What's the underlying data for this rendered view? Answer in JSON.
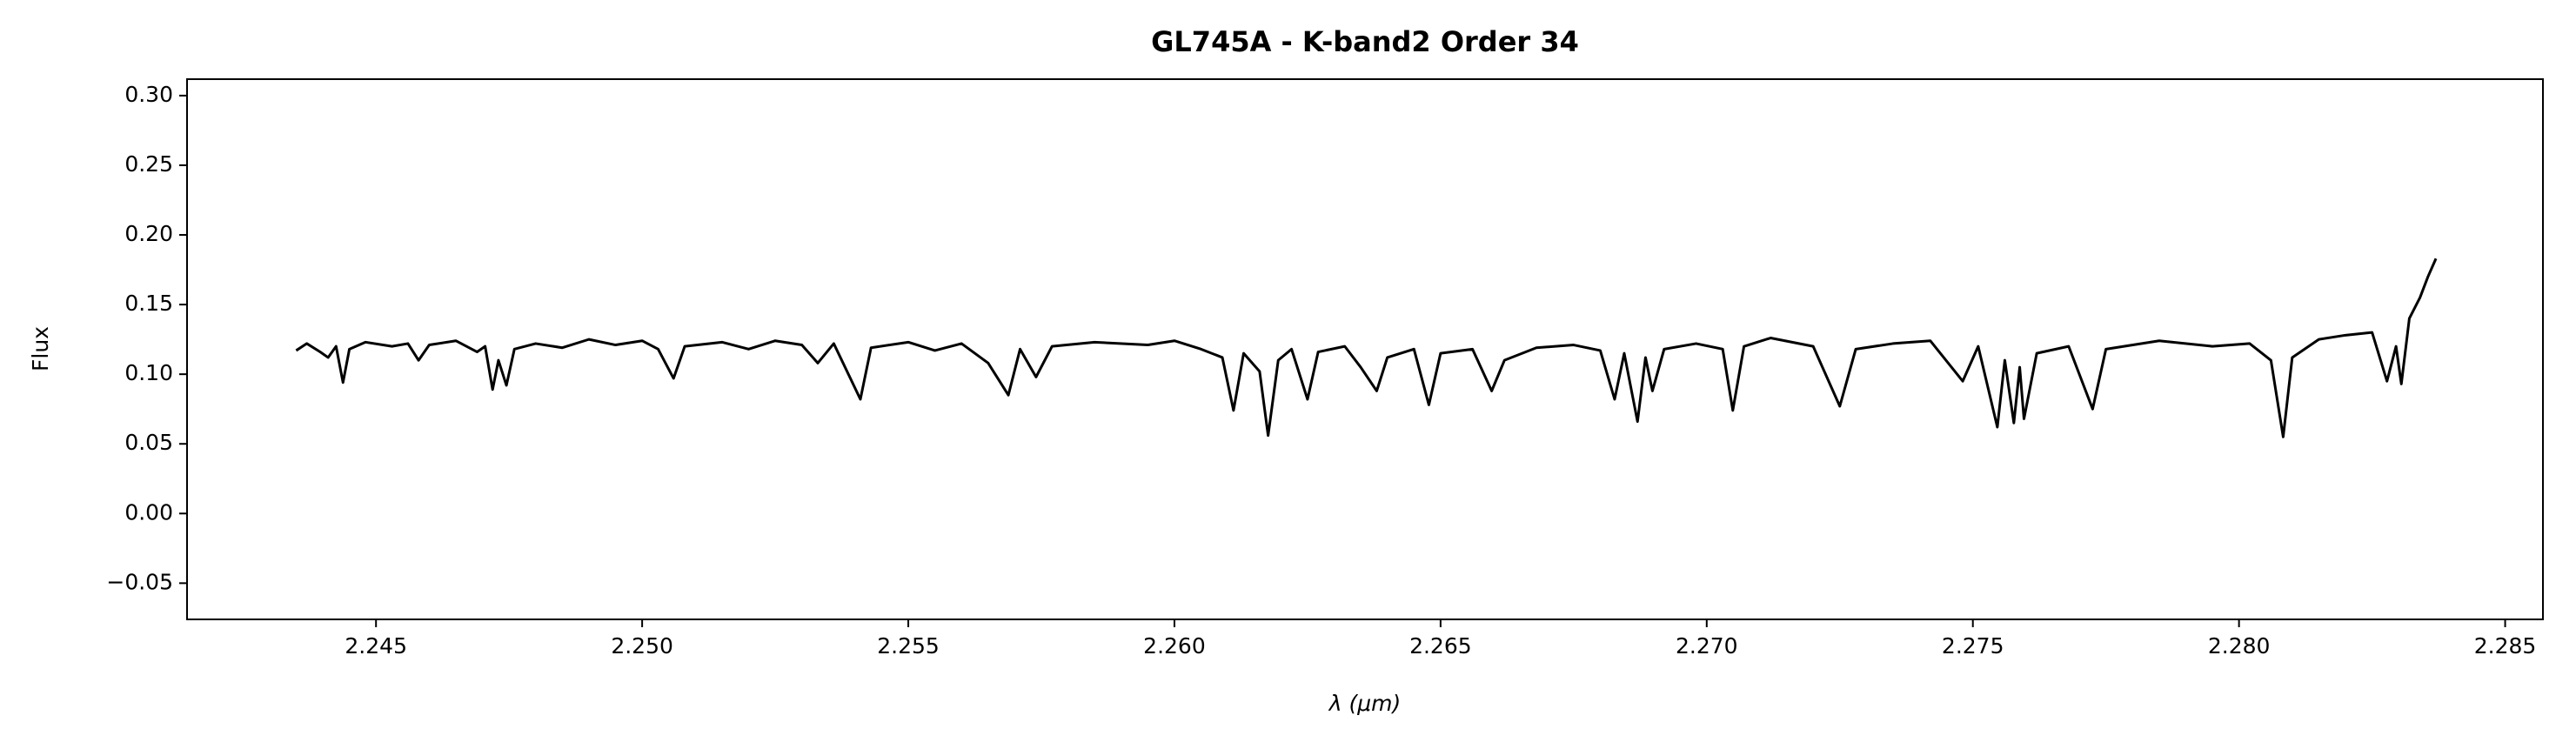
{
  "chart_data": {
    "type": "line",
    "title": "GL745A - K-band2 Order 34",
    "xlabel": "λ (μm)",
    "ylabel": "Flux",
    "xlim": [
      2.24145,
      2.28571
    ],
    "ylim": [
      -0.076,
      0.3118
    ],
    "xticks": [
      2.245,
      {
        "value": 2.25,
        "label": "2.250"
      },
      2.255,
      {
        "value": 2.26,
        "label": "2.260"
      },
      2.265,
      {
        "value": 2.27,
        "label": "2.270"
      },
      2.275,
      {
        "value": 2.28,
        "label": "2.280"
      },
      2.285
    ],
    "yticks": [
      {
        "value": -0.05,
        "label": "−0.05"
      },
      {
        "value": 0,
        "label": "0.00"
      },
      0.05,
      {
        "value": 0.1,
        "label": "0.10"
      },
      0.15,
      {
        "value": 0.2,
        "label": "0.20"
      },
      0.25,
      {
        "value": 0.3,
        "label": "0.30"
      }
    ],
    "grid": false,
    "series": [
      {
        "color": "#000000",
        "x": [
          2.2435,
          2.2437,
          2.24395,
          2.2441,
          2.24425,
          2.24438,
          2.2445,
          2.2448,
          2.2453,
          2.2456,
          2.2458,
          2.246,
          2.2465,
          2.2469,
          2.24705,
          2.24719,
          2.2473,
          2.24745,
          2.2476,
          2.248,
          2.2485,
          2.249,
          2.2495,
          2.25,
          2.2503,
          2.25059,
          2.2508,
          2.2515,
          2.252,
          2.2525,
          2.253,
          2.2533,
          2.2536,
          2.2541,
          2.2543,
          2.255,
          2.2555,
          2.256,
          2.2565,
          2.25688,
          2.2571,
          2.2574,
          2.2577,
          2.2585,
          2.2595,
          2.26,
          2.2605,
          2.2609,
          2.26111,
          2.2613,
          2.2616,
          2.26176,
          2.26195,
          2.2622,
          2.2625,
          2.2627,
          2.2632,
          2.2635,
          2.2638,
          2.264,
          2.2645,
          2.26478,
          2.265,
          2.2656,
          2.26596,
          2.2662,
          2.2668,
          2.2675,
          2.268,
          2.26827,
          2.26845,
          2.2687,
          2.26885,
          2.26898,
          2.2692,
          2.2698,
          2.2703,
          2.27049,
          2.2707,
          2.2712,
          2.272,
          2.2725,
          2.2728,
          2.2735,
          2.2742,
          2.27481,
          2.2751,
          2.27546,
          2.2756,
          2.27577,
          2.27588,
          2.27596,
          2.2762,
          2.2768,
          2.27725,
          2.2775,
          2.2785,
          2.2795,
          2.2802,
          2.2806,
          2.28083,
          2.281,
          2.2815,
          2.282,
          2.2825,
          2.28278,
          2.28295,
          2.28305,
          2.2832,
          2.2834,
          2.28355,
          2.2837
        ],
        "values": [
          0.117,
          0.122,
          0.116,
          0.112,
          0.12,
          0.094,
          0.118,
          0.123,
          0.12,
          0.122,
          0.11,
          0.121,
          0.124,
          0.116,
          0.12,
          0.089,
          0.11,
          0.092,
          0.118,
          0.122,
          0.119,
          0.125,
          0.121,
          0.124,
          0.118,
          0.097,
          0.12,
          0.123,
          0.118,
          0.124,
          0.121,
          0.108,
          0.122,
          0.082,
          0.119,
          0.123,
          0.117,
          0.122,
          0.108,
          0.085,
          0.118,
          0.098,
          0.12,
          0.123,
          0.121,
          0.124,
          0.118,
          0.112,
          0.074,
          0.115,
          0.102,
          0.056,
          0.11,
          0.118,
          0.082,
          0.116,
          0.12,
          0.105,
          0.088,
          0.112,
          0.118,
          0.078,
          0.115,
          0.118,
          0.088,
          0.11,
          0.119,
          0.121,
          0.117,
          0.082,
          0.115,
          0.066,
          0.112,
          0.088,
          0.118,
          0.122,
          0.118,
          0.074,
          0.12,
          0.126,
          0.12,
          0.077,
          0.118,
          0.122,
          0.124,
          0.095,
          0.12,
          0.062,
          0.11,
          0.065,
          0.105,
          0.068,
          0.115,
          0.12,
          0.075,
          0.118,
          0.124,
          0.12,
          0.122,
          0.11,
          0.055,
          0.112,
          0.125,
          0.128,
          0.13,
          0.095,
          0.12,
          0.093,
          0.14,
          0.155,
          0.17,
          0.183
        ]
      }
    ]
  }
}
